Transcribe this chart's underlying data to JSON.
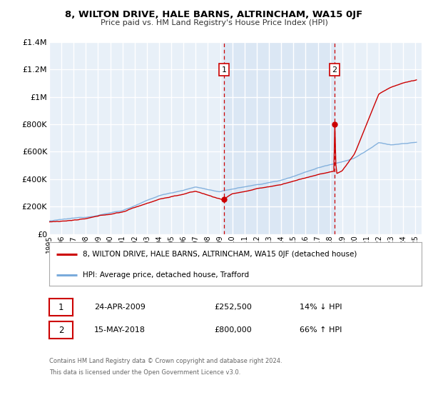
{
  "title": "8, WILTON DRIVE, HALE BARNS, ALTRINCHAM, WA15 0JF",
  "subtitle": "Price paid vs. HM Land Registry's House Price Index (HPI)",
  "legend_label_red": "8, WILTON DRIVE, HALE BARNS, ALTRINCHAM, WA15 0JF (detached house)",
  "legend_label_blue": "HPI: Average price, detached house, Trafford",
  "annotation1_label": "1",
  "annotation1_date": "24-APR-2009",
  "annotation1_price": "£252,500",
  "annotation1_hpi": "14% ↓ HPI",
  "annotation2_label": "2",
  "annotation2_date": "15-MAY-2018",
  "annotation2_price": "£800,000",
  "annotation2_hpi": "66% ↑ HPI",
  "footer1": "Contains HM Land Registry data © Crown copyright and database right 2024.",
  "footer2": "This data is licensed under the Open Government Licence v3.0.",
  "plot_bg_color": "#e8f0f8",
  "shade_color": "#d0e4f7",
  "grid_color": "#ffffff",
  "red_line_color": "#cc0000",
  "blue_line_color": "#7aabdb",
  "vline_color": "#cc0000",
  "marker1_x": 2009.31,
  "marker1_y": 252500,
  "marker2_x": 2018.38,
  "marker2_y": 800000,
  "xmin": 1995,
  "xmax": 2025.5,
  "ymin": 0,
  "ymax": 1400000,
  "yticks": [
    0,
    200000,
    400000,
    600000,
    800000,
    1000000,
    1200000,
    1400000
  ],
  "ytick_labels": [
    "£0",
    "£200K",
    "£400K",
    "£600K",
    "£800K",
    "£1M",
    "£1.2M",
    "£1.4M"
  ]
}
